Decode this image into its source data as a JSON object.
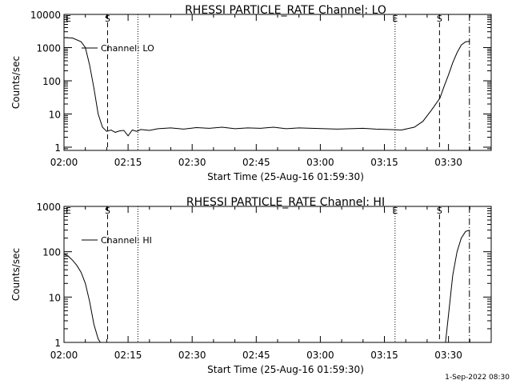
{
  "footer": {
    "timestamp": "1-Sep-2022 08:30"
  },
  "chart_data": [
    {
      "type": "line",
      "title": "RHESSI PARTICLE_RATE Channel: LO",
      "ylabel": "Counts/sec",
      "xlabel": "Start Time (25-Aug-16 01:59:30)",
      "y_scale": "log",
      "ylim": [
        0.8,
        10000
      ],
      "xlim_minutes": [
        0,
        100
      ],
      "y_ticks": [
        1,
        10,
        100,
        1000,
        10000
      ],
      "y_tick_labels": [
        "1",
        "10",
        "100",
        "1000",
        "10000"
      ],
      "x_ticks_minutes": [
        0,
        15,
        30,
        45,
        60,
        75,
        90
      ],
      "x_tick_labels": [
        "02:00",
        "02:15",
        "02:30",
        "02:45",
        "03:00",
        "03:15",
        "03:30"
      ],
      "legend": {
        "label": "Channel: LO",
        "position": "top-left"
      },
      "markers": [
        {
          "t": 10.2,
          "style": "dashed",
          "label": "S"
        },
        {
          "t": 17.3,
          "style": "dotted",
          "label": ""
        },
        {
          "t": 77.5,
          "style": "dotted",
          "label": "E"
        },
        {
          "t": 87.9,
          "style": "dashed",
          "label": "S"
        },
        {
          "t": 94.9,
          "style": "dashdot",
          "label": ""
        }
      ],
      "corner_label": "E",
      "series": [
        {
          "name": "Channel: LO",
          "t": [
            0,
            2,
            4,
            5,
            6,
            7,
            8,
            9,
            10,
            11,
            12,
            13,
            14,
            15,
            16,
            17,
            18,
            20,
            22,
            25,
            28,
            31,
            34,
            37,
            40,
            43,
            46,
            49,
            52,
            55,
            58,
            61,
            64,
            67,
            70,
            73,
            76,
            79,
            82,
            84,
            86,
            88,
            89,
            90,
            91,
            92,
            93,
            94,
            95
          ],
          "values": [
            2000,
            1950,
            1500,
            1000,
            300,
            60,
            10,
            4,
            3,
            3.3,
            2.8,
            3.1,
            3.2,
            2.2,
            3.3,
            3.0,
            3.4,
            3.2,
            3.6,
            3.8,
            3.5,
            3.9,
            3.7,
            4.0,
            3.6,
            3.8,
            3.7,
            4.0,
            3.6,
            3.8,
            3.7,
            3.6,
            3.5,
            3.6,
            3.7,
            3.5,
            3.4,
            3.3,
            4.0,
            6.0,
            13,
            30,
            70,
            150,
            350,
            700,
            1200,
            1500,
            1550
          ]
        }
      ]
    },
    {
      "type": "line",
      "title": "RHESSI PARTICLE_RATE Channel: HI",
      "ylabel": "Counts/sec",
      "xlabel": "Start Time (25-Aug-16 01:59:30)",
      "y_scale": "log",
      "ylim": [
        1,
        1000
      ],
      "xlim_minutes": [
        0,
        100
      ],
      "y_ticks": [
        1,
        10,
        100,
        1000
      ],
      "y_tick_labels": [
        "1",
        "10",
        "100",
        "1000"
      ],
      "x_ticks_minutes": [
        0,
        15,
        30,
        45,
        60,
        75,
        90
      ],
      "x_tick_labels": [
        "02:00",
        "02:15",
        "02:30",
        "02:45",
        "03:00",
        "03:15",
        "03:30"
      ],
      "legend": {
        "label": "Channel: HI",
        "position": "top-left"
      },
      "markers": [
        {
          "t": 10.2,
          "style": "dashed",
          "label": "S"
        },
        {
          "t": 17.3,
          "style": "dotted",
          "label": ""
        },
        {
          "t": 77.5,
          "style": "dotted",
          "label": "E"
        },
        {
          "t": 87.9,
          "style": "dashed",
          "label": "S"
        },
        {
          "t": 94.9,
          "style": "dashdot",
          "label": ""
        }
      ],
      "corner_label": "E",
      "series": [
        {
          "name": "Channel: HI",
          "segments": [
            {
              "t": [
                0,
                1,
                2,
                3,
                4,
                5,
                6,
                7,
                8,
                8.5
              ],
              "values": [
                90,
                80,
                65,
                50,
                35,
                20,
                8,
                2.5,
                1.2,
                1.0
              ]
            },
            {
              "t": [
                89.3,
                90,
                91,
                92,
                93,
                94,
                95
              ],
              "values": [
                1.0,
                4,
                30,
                100,
                200,
                280,
                300
              ]
            }
          ]
        }
      ]
    }
  ]
}
